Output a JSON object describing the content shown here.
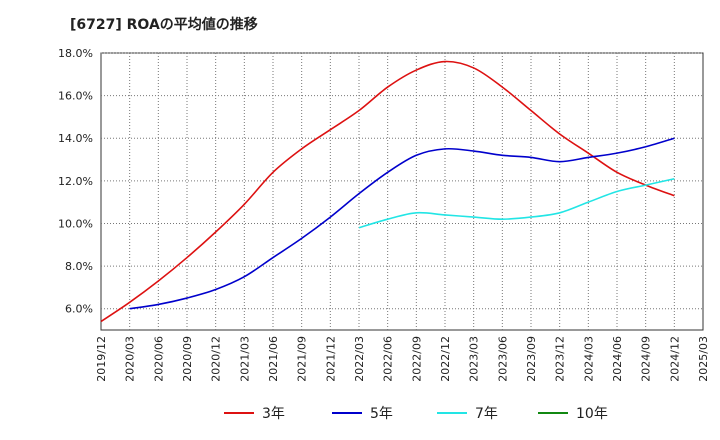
{
  "chart_data": {
    "type": "line",
    "title": "[6727]  ROAの平均値の推移",
    "xlabel": "",
    "ylabel": "",
    "x_ticks": [
      "2019/12",
      "2020/03",
      "2020/06",
      "2020/09",
      "2020/12",
      "2021/03",
      "2021/06",
      "2021/09",
      "2021/12",
      "2022/03",
      "2022/06",
      "2022/09",
      "2022/12",
      "2023/03",
      "2023/06",
      "2023/09",
      "2023/12",
      "2024/03",
      "2024/06",
      "2024/09",
      "2024/12",
      "2025/03"
    ],
    "y_ticks": [
      "6.0%",
      "8.0%",
      "10.0%",
      "12.0%",
      "14.0%",
      "16.0%",
      "18.0%"
    ],
    "ylim": [
      5.0,
      18.0
    ],
    "grid": true,
    "legend_position": "bottom",
    "series": [
      {
        "name": "3年",
        "color": "#dd1111",
        "x": [
          "2019/12",
          "2020/03",
          "2020/06",
          "2020/09",
          "2020/12",
          "2021/03",
          "2021/06",
          "2021/09",
          "2021/12",
          "2022/03",
          "2022/06",
          "2022/09",
          "2022/12",
          "2023/03",
          "2023/06",
          "2023/09",
          "2023/12",
          "2024/03",
          "2024/06",
          "2024/09",
          "2024/12"
        ],
        "values": [
          5.4,
          6.3,
          7.3,
          8.4,
          9.6,
          10.9,
          12.4,
          13.5,
          14.4,
          15.3,
          16.4,
          17.2,
          17.6,
          17.3,
          16.4,
          15.3,
          14.2,
          13.3,
          12.4,
          11.8,
          11.3
        ]
      },
      {
        "name": "5年",
        "color": "#0000cc",
        "x": [
          "2020/03",
          "2020/06",
          "2020/09",
          "2020/12",
          "2021/03",
          "2021/06",
          "2021/09",
          "2021/12",
          "2022/03",
          "2022/06",
          "2022/09",
          "2022/12",
          "2023/03",
          "2023/06",
          "2023/09",
          "2023/12",
          "2024/03",
          "2024/06",
          "2024/09",
          "2024/12"
        ],
        "values": [
          6.0,
          6.2,
          6.5,
          6.9,
          7.5,
          8.4,
          9.3,
          10.3,
          11.4,
          12.4,
          13.2,
          13.5,
          13.4,
          13.2,
          13.1,
          12.9,
          13.1,
          13.3,
          13.6,
          14.0
        ]
      },
      {
        "name": "7年",
        "color": "#22e5e5",
        "x": [
          "2022/03",
          "2022/06",
          "2022/09",
          "2022/12",
          "2023/03",
          "2023/06",
          "2023/09",
          "2023/12",
          "2024/03",
          "2024/06",
          "2024/09",
          "2024/12"
        ],
        "values": [
          9.8,
          10.2,
          10.5,
          10.4,
          10.3,
          10.2,
          10.3,
          10.5,
          11.0,
          11.5,
          11.8,
          12.1
        ]
      },
      {
        "name": "10年",
        "color": "#118811",
        "x": [],
        "values": []
      }
    ]
  }
}
